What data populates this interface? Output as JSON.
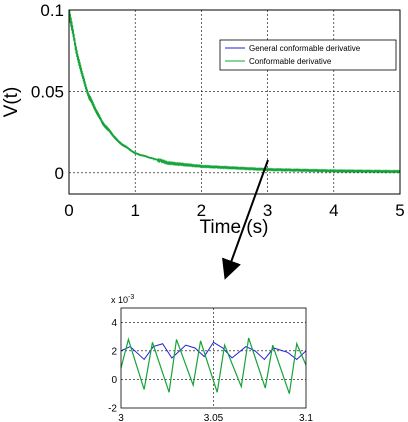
{
  "chart_data": [
    {
      "type": "line",
      "xlabel": "Time (s)",
      "ylabel": "V(t)",
      "xlim": [
        0,
        5
      ],
      "ylim": [
        -0.013,
        0.1
      ],
      "x_ticks": [
        "0",
        "1",
        "2",
        "3",
        "4",
        "5"
      ],
      "y_ticks": [
        "0",
        "0.05",
        "0.1"
      ],
      "x_tick_values": [
        0,
        1,
        2,
        3,
        4,
        5
      ],
      "y_tick_values": [
        0,
        0.05,
        0.1
      ],
      "grid": true,
      "legend_position": "top-right",
      "series": [
        {
          "name": "General conformable derivative",
          "color": "#1f1fdd",
          "x": [
            0,
            0.02,
            0.1,
            0.2,
            0.3,
            0.5,
            0.75,
            1,
            1.5,
            2,
            2.5,
            3,
            4,
            5
          ],
          "y": [
            0.1,
            0.095,
            0.077,
            0.06,
            0.047,
            0.031,
            0.019,
            0.012,
            0.006,
            0.004,
            0.003,
            0.002,
            0.0012,
            0.0008
          ]
        },
        {
          "name": "Conformable derivative",
          "color": "#16a33a",
          "x": [
            0,
            0.02,
            0.1,
            0.2,
            0.3,
            0.5,
            0.75,
            1,
            1.5,
            2,
            2.5,
            3,
            4,
            5
          ],
          "y": [
            0.1,
            0.095,
            0.077,
            0.06,
            0.047,
            0.031,
            0.019,
            0.012,
            0.006,
            0.004,
            0.003,
            0.002,
            0.0012,
            0.0008
          ],
          "oscillation_amplitude": 0.004
        }
      ]
    },
    {
      "type": "line",
      "xlim": [
        3,
        3.1
      ],
      "ylim": [
        -2,
        5
      ],
      "y_scale_label": "x 10",
      "y_scale_exponent": "-3",
      "x_ticks": [
        "3",
        "3.05",
        "3.1"
      ],
      "y_ticks": [
        "-2",
        "0",
        "2",
        "4"
      ],
      "x_tick_values": [
        3,
        3.05,
        3.1
      ],
      "y_tick_values": [
        -2,
        0,
        2,
        4
      ],
      "grid": true,
      "series": [
        {
          "name": "General conformable derivative",
          "color": "#1f1fdd",
          "x": [
            3.0,
            3.005,
            3.0125,
            3.0175,
            3.0225,
            3.0275,
            3.035,
            3.04,
            3.045,
            3.05,
            3.055,
            3.06,
            3.0675,
            3.0725,
            3.0775,
            3.0825,
            3.09,
            3.095,
            3.1
          ],
          "y": [
            2.0,
            2.3,
            1.4,
            2.3,
            2.5,
            1.5,
            2.4,
            2.2,
            1.6,
            2.6,
            2.2,
            1.5,
            2.3,
            2.0,
            1.4,
            2.2,
            1.9,
            1.4,
            2.0
          ]
        },
        {
          "name": "Conformable derivative",
          "color": "#16a33a",
          "x": [
            3.0,
            3.004,
            3.0125,
            3.017,
            3.026,
            3.03,
            3.039,
            3.043,
            3.052,
            3.056,
            3.065,
            3.069,
            3.078,
            3.082,
            3.091,
            3.095,
            3.1
          ],
          "y": [
            0.8,
            2.8,
            -0.7,
            2.6,
            -0.9,
            2.8,
            -0.4,
            2.7,
            -0.9,
            2.4,
            -0.5,
            2.9,
            -0.6,
            2.4,
            -1.0,
            2.5,
            1.0
          ]
        }
      ]
    }
  ]
}
